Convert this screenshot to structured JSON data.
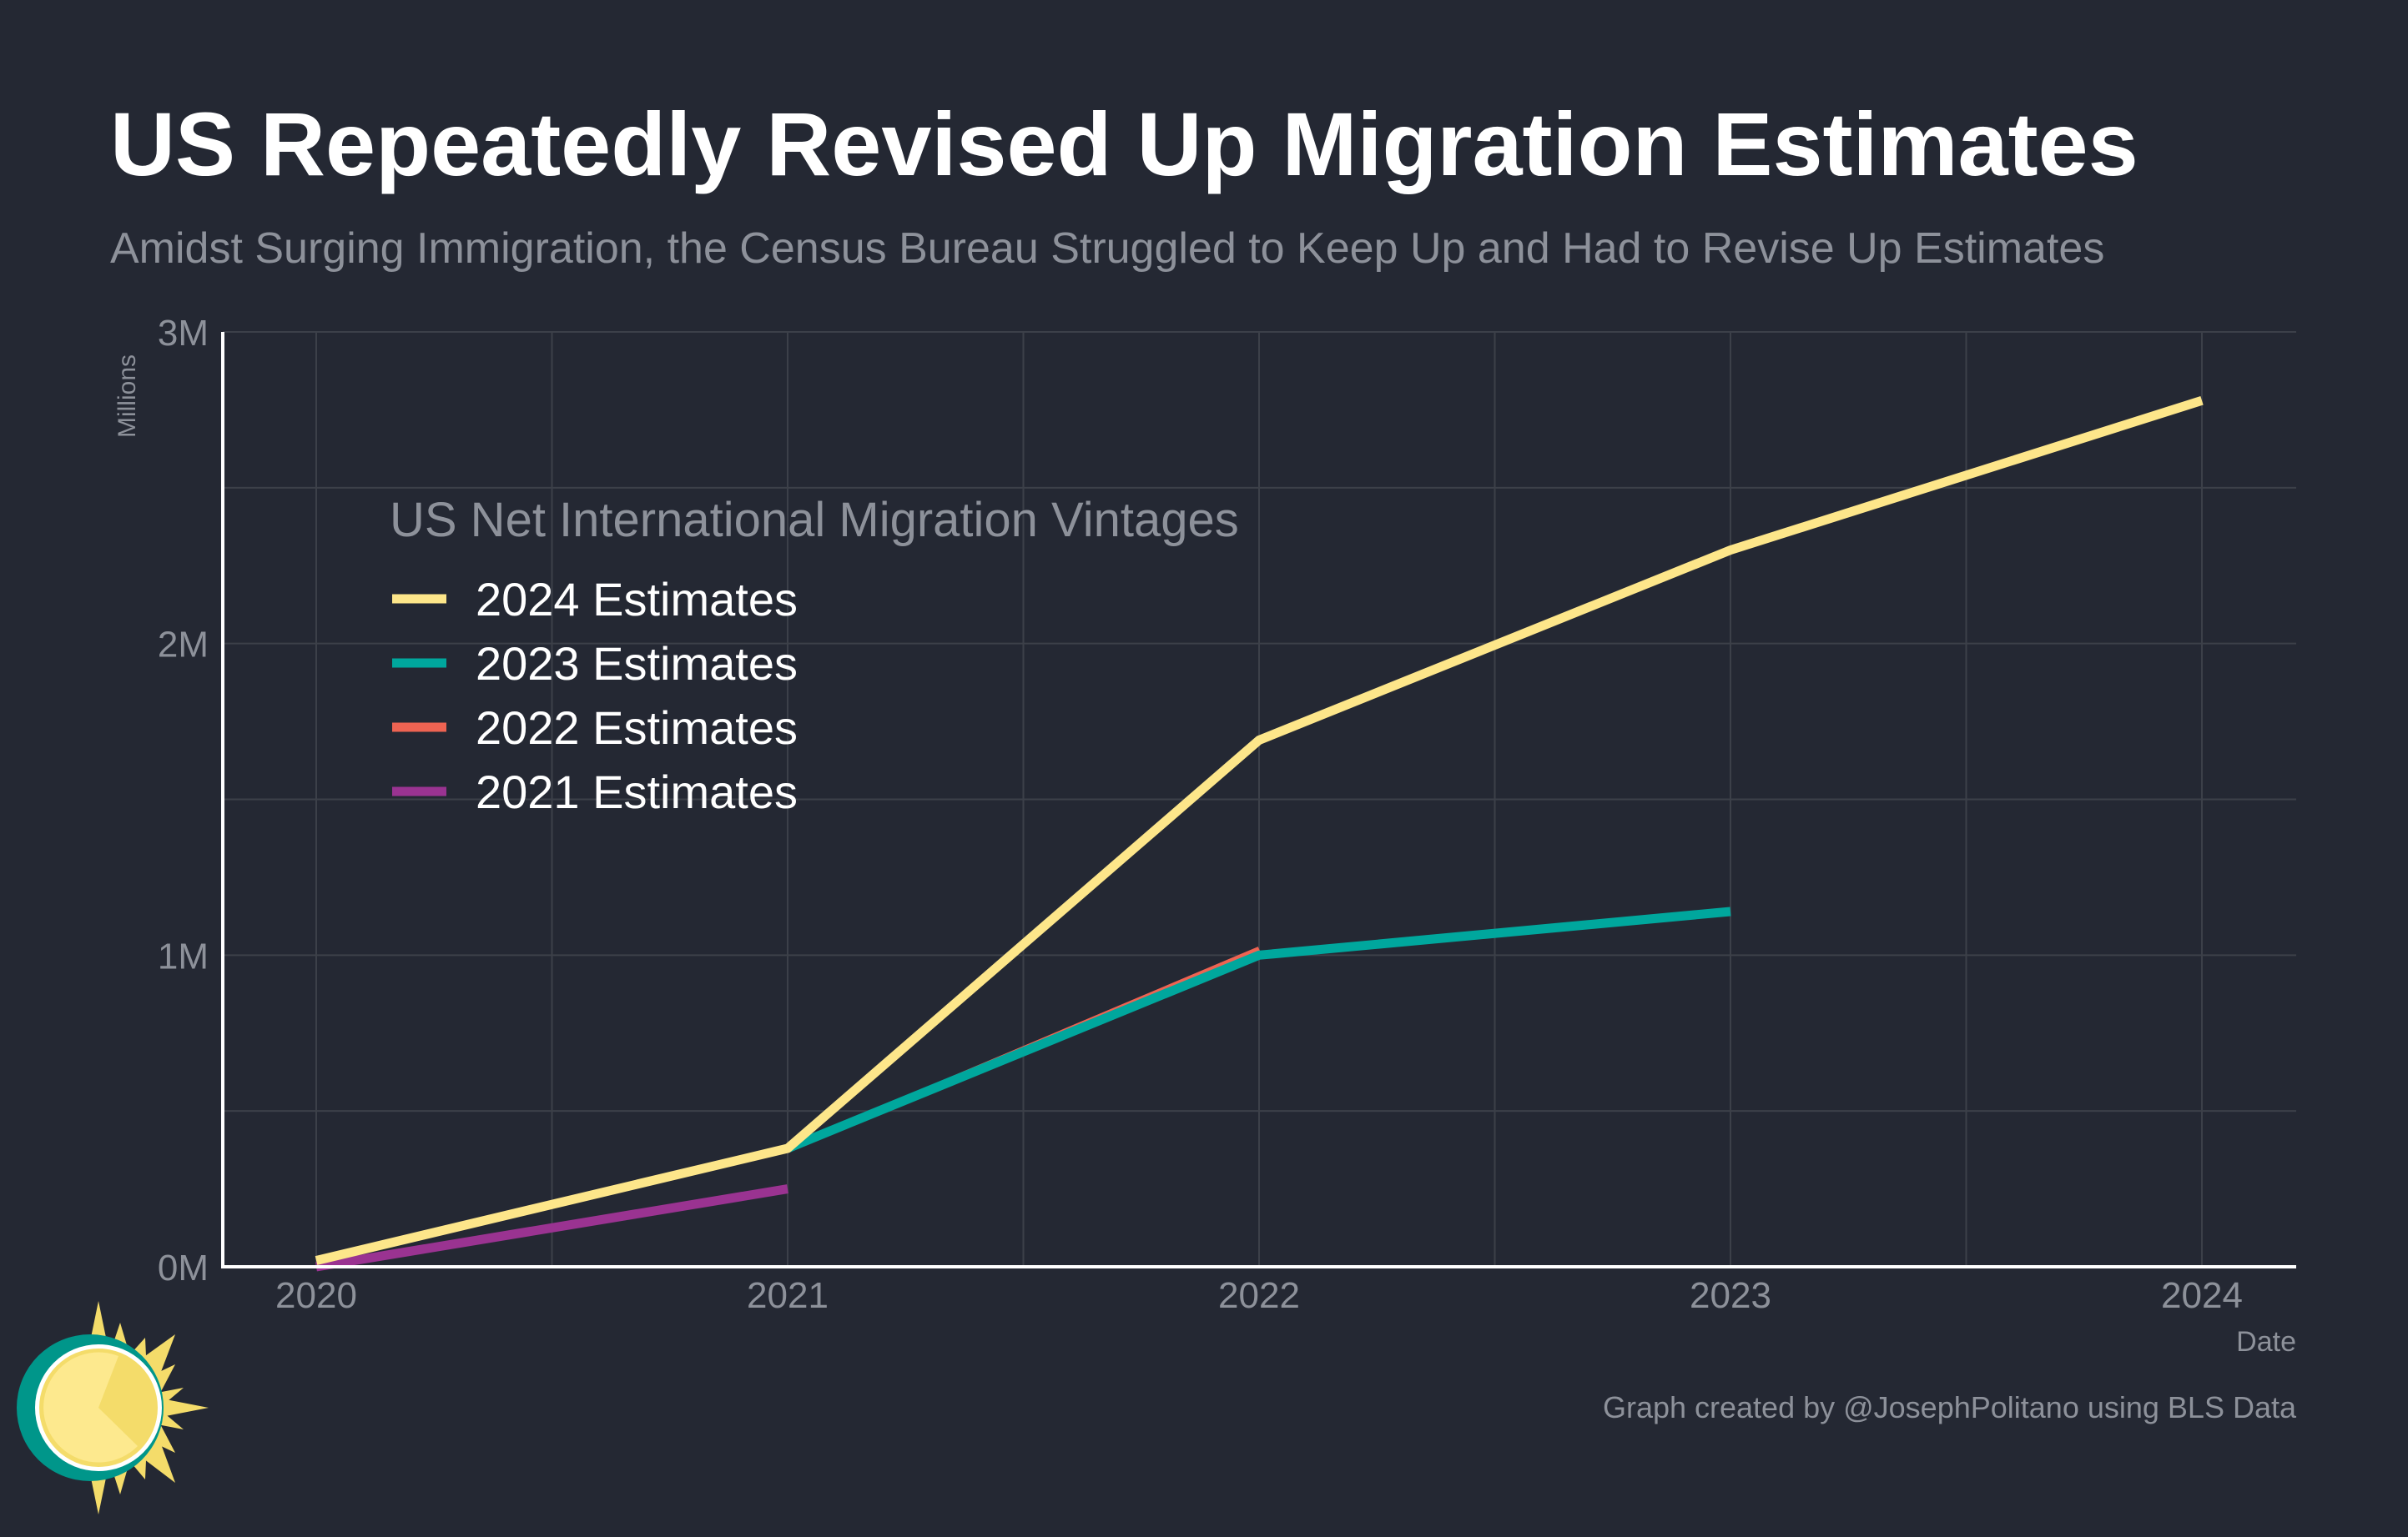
{
  "header": {
    "title": "US Repeatedly Revised Up Migration Estimates",
    "subtitle": "Amidst Surging Immigration, the Census Bureau Struggled to Keep Up and Had to Revise Up Estimates"
  },
  "footer": {
    "credit": "Graph created by @JosephPolitano using BLS Data"
  },
  "chart_data": {
    "type": "line",
    "title": "US Repeatedly Revised Up Migration Estimates",
    "xlabel": "Date",
    "ylabel": "Millions",
    "xlim": [
      2019.8,
      2024.2
    ],
    "ylim": [
      0,
      3
    ],
    "x_ticks": [
      2020,
      2021,
      2022,
      2023,
      2024
    ],
    "x_tick_labels": [
      "2020",
      "2021",
      "2022",
      "2023",
      "2024"
    ],
    "y_ticks": [
      0,
      1,
      2,
      3
    ],
    "y_tick_labels": [
      "0M",
      "1M",
      "2M",
      "3M"
    ],
    "grid": true,
    "legend_title": "US Net International Migration Vintages",
    "legend_position": "top-left",
    "series": [
      {
        "name": "2024 Estimates",
        "color": "#fde68a",
        "x": [
          2020,
          2021,
          2022,
          2023,
          2024
        ],
        "values": [
          0.02,
          0.38,
          1.69,
          2.3,
          2.78
        ]
      },
      {
        "name": "2023 Estimates",
        "color": "#00a79d",
        "x": [
          2021,
          2022,
          2023
        ],
        "values": [
          0.38,
          1.0,
          1.14
        ]
      },
      {
        "name": "2022 Estimates",
        "color": "#ee6352",
        "x": [
          2021,
          2022
        ],
        "values": [
          0.38,
          1.02
        ]
      },
      {
        "name": "2021 Estimates",
        "color": "#9a3391",
        "x": [
          2020,
          2021
        ],
        "values": [
          0.0,
          0.25
        ]
      }
    ]
  }
}
